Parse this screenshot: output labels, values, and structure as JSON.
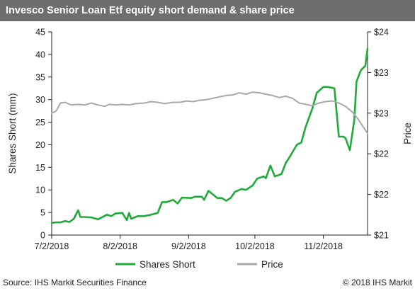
{
  "title": "Invesco Senior Loan Etf equity short demand & share price",
  "footer": {
    "source": "Source: IHS Markit Securities Finance",
    "copyright": "© 2018 IHS Markit"
  },
  "colors": {
    "title_bg": "#6e6e6e",
    "shares_short": "#1faa3a",
    "price": "#a8a8a8"
  },
  "chart_data": {
    "type": "line",
    "x_ticks": [
      "7/2/2018",
      "8/2/2018",
      "9/2/2018",
      "10/2/2018",
      "11/2/2018"
    ],
    "left_axis": {
      "label": "Shares Short (mm)",
      "ticks": [
        "0",
        "5",
        "10",
        "15",
        "20",
        "25",
        "30",
        "35",
        "40",
        "45"
      ],
      "ylim": [
        0,
        45
      ]
    },
    "right_axis": {
      "label": "Price",
      "ticks": [
        "$21",
        "$22",
        "$22",
        "$23",
        "$23",
        "$24"
      ],
      "ylim": [
        21,
        24
      ]
    },
    "legend": {
      "position": "bottom",
      "items": [
        "Shares Short",
        "Price"
      ]
    },
    "grid": false,
    "series": [
      {
        "name": "Shares Short",
        "axis": "left",
        "color": "#1faa3a",
        "points": [
          [
            "2018-07-02",
            2.7
          ],
          [
            "2018-07-04",
            2.8
          ],
          [
            "2018-07-06",
            2.8
          ],
          [
            "2018-07-08",
            3.1
          ],
          [
            "2018-07-10",
            2.9
          ],
          [
            "2018-07-12",
            3.6
          ],
          [
            "2018-07-14",
            5.5
          ],
          [
            "2018-07-15",
            4.0
          ],
          [
            "2018-07-17",
            4.0
          ],
          [
            "2018-07-20",
            3.9
          ],
          [
            "2018-07-23",
            3.5
          ],
          [
            "2018-07-27",
            4.5
          ],
          [
            "2018-07-29",
            4.2
          ],
          [
            "2018-07-31",
            4.8
          ],
          [
            "2018-08-03",
            4.9
          ],
          [
            "2018-08-05",
            3.3
          ],
          [
            "2018-08-06",
            4.9
          ],
          [
            "2018-08-07",
            3.6
          ],
          [
            "2018-08-10",
            4.2
          ],
          [
            "2018-08-13",
            4.2
          ],
          [
            "2018-08-16",
            4.5
          ],
          [
            "2018-08-19",
            4.9
          ],
          [
            "2018-08-21",
            7.3
          ],
          [
            "2018-08-23",
            7.3
          ],
          [
            "2018-08-26",
            7.8
          ],
          [
            "2018-08-28",
            7.0
          ],
          [
            "2018-08-30",
            8.3
          ],
          [
            "2018-09-03",
            8.2
          ],
          [
            "2018-09-05",
            8.5
          ],
          [
            "2018-09-08",
            8.5
          ],
          [
            "2018-09-09",
            7.8
          ],
          [
            "2018-09-11",
            9.8
          ],
          [
            "2018-09-13",
            9.0
          ],
          [
            "2018-09-15",
            8.2
          ],
          [
            "2018-09-17",
            8.2
          ],
          [
            "2018-09-19",
            7.6
          ],
          [
            "2018-09-21",
            8.2
          ],
          [
            "2018-09-23",
            9.6
          ],
          [
            "2018-09-26",
            10.2
          ],
          [
            "2018-09-28",
            10.0
          ],
          [
            "2018-10-01",
            11.0
          ],
          [
            "2018-10-03",
            12.5
          ],
          [
            "2018-10-06",
            13.0
          ],
          [
            "2018-10-07",
            12.6
          ],
          [
            "2018-10-09",
            15.4
          ],
          [
            "2018-10-11",
            13.0
          ],
          [
            "2018-10-14",
            13.5
          ],
          [
            "2018-10-16",
            16.0
          ],
          [
            "2018-10-18",
            17.5
          ],
          [
            "2018-10-21",
            20.0
          ],
          [
            "2018-10-23",
            20.5
          ],
          [
            "2018-10-25",
            24.0
          ],
          [
            "2018-10-28",
            28.0
          ],
          [
            "2018-10-30",
            31.5
          ],
          [
            "2018-11-02",
            32.8
          ],
          [
            "2018-11-04",
            32.8
          ],
          [
            "2018-11-07",
            32.5
          ],
          [
            "2018-11-09",
            21.8
          ],
          [
            "2018-11-11",
            21.8
          ],
          [
            "2018-11-12",
            21.5
          ],
          [
            "2018-11-14",
            18.8
          ],
          [
            "2018-11-16",
            25.5
          ],
          [
            "2018-11-17",
            34.0
          ],
          [
            "2018-11-19",
            36.5
          ],
          [
            "2018-11-21",
            37.5
          ],
          [
            "2018-11-22",
            41.3
          ]
        ]
      },
      {
        "name": "Price",
        "axis": "right",
        "color": "#a8a8a8",
        "points": [
          [
            "2018-07-02",
            22.8
          ],
          [
            "2018-07-04",
            22.83
          ],
          [
            "2018-07-06",
            22.95
          ],
          [
            "2018-07-08",
            22.96
          ],
          [
            "2018-07-11",
            22.92
          ],
          [
            "2018-07-14",
            22.93
          ],
          [
            "2018-07-17",
            22.92
          ],
          [
            "2018-07-20",
            22.95
          ],
          [
            "2018-07-23",
            22.92
          ],
          [
            "2018-07-26",
            22.9
          ],
          [
            "2018-07-28",
            22.93
          ],
          [
            "2018-07-31",
            22.92
          ],
          [
            "2018-08-03",
            22.93
          ],
          [
            "2018-08-06",
            22.92
          ],
          [
            "2018-08-09",
            22.94
          ],
          [
            "2018-08-13",
            22.95
          ],
          [
            "2018-08-16",
            22.97
          ],
          [
            "2018-08-19",
            22.96
          ],
          [
            "2018-08-22",
            22.94
          ],
          [
            "2018-08-26",
            22.96
          ],
          [
            "2018-08-29",
            22.96
          ],
          [
            "2018-09-01",
            22.98
          ],
          [
            "2018-09-04",
            22.97
          ],
          [
            "2018-09-07",
            22.99
          ],
          [
            "2018-09-10",
            23.0
          ],
          [
            "2018-09-13",
            23.02
          ],
          [
            "2018-09-16",
            23.04
          ],
          [
            "2018-09-19",
            23.06
          ],
          [
            "2018-09-22",
            23.07
          ],
          [
            "2018-09-25",
            23.1
          ],
          [
            "2018-09-28",
            23.08
          ],
          [
            "2018-10-01",
            23.11
          ],
          [
            "2018-10-04",
            23.1
          ],
          [
            "2018-10-07",
            23.08
          ],
          [
            "2018-10-10",
            23.06
          ],
          [
            "2018-10-13",
            23.03
          ],
          [
            "2018-10-16",
            23.05
          ],
          [
            "2018-10-19",
            23.02
          ],
          [
            "2018-10-22",
            22.95
          ],
          [
            "2018-10-25",
            22.93
          ],
          [
            "2018-10-28",
            22.91
          ],
          [
            "2018-10-31",
            22.95
          ],
          [
            "2018-11-03",
            22.97
          ],
          [
            "2018-11-06",
            22.98
          ],
          [
            "2018-11-09",
            22.95
          ],
          [
            "2018-11-12",
            22.9
          ],
          [
            "2018-11-15",
            22.82
          ],
          [
            "2018-11-18",
            22.7
          ],
          [
            "2018-11-21",
            22.55
          ],
          [
            "2018-11-22",
            22.5
          ]
        ]
      }
    ]
  }
}
